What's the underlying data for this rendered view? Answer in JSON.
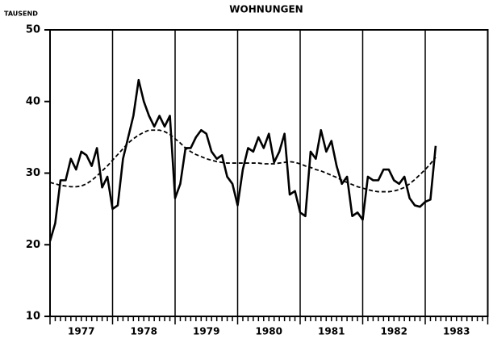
{
  "chart_data": {
    "type": "line",
    "title": "WOHNUNGEN",
    "y_label": "TAUSEND",
    "categories": [
      "1977",
      "1978",
      "1979",
      "1980",
      "1981",
      "1982",
      "1983"
    ],
    "x": [
      1977,
      1977.083,
      1977.167,
      1977.25,
      1977.333,
      1977.417,
      1977.5,
      1977.583,
      1977.667,
      1977.75,
      1977.833,
      1977.917,
      1978,
      1978.083,
      1978.167,
      1978.25,
      1978.333,
      1978.417,
      1978.5,
      1978.583,
      1978.667,
      1978.75,
      1978.833,
      1978.917,
      1979,
      1979.083,
      1979.167,
      1979.25,
      1979.333,
      1979.417,
      1979.5,
      1979.583,
      1979.667,
      1979.75,
      1979.833,
      1979.917,
      1980,
      1980.083,
      1980.167,
      1980.25,
      1980.333,
      1980.417,
      1980.5,
      1980.583,
      1980.667,
      1980.75,
      1980.833,
      1980.917,
      1981,
      1981.083,
      1981.167,
      1981.25,
      1981.333,
      1981.417,
      1981.5,
      1981.583,
      1981.667,
      1981.75,
      1981.833,
      1981.917,
      1982,
      1982.083,
      1982.167,
      1982.25,
      1982.333,
      1982.417,
      1982.5,
      1982.583,
      1982.667,
      1982.75,
      1982.833,
      1982.917,
      1983,
      1983.083,
      1983.167
    ],
    "series": [
      {
        "color": "#000000",
        "dashed": false,
        "values": [
          20.5,
          23,
          29,
          29,
          32,
          30.5,
          33,
          32.5,
          31,
          33.5,
          28,
          29.5,
          25,
          25.5,
          32,
          35,
          38,
          43,
          40,
          38,
          36.5,
          38,
          36.5,
          38,
          26.5,
          28.5,
          33.5,
          33.5,
          35,
          36,
          35.5,
          33,
          32,
          32.5,
          29.5,
          28.5,
          25.5,
          30.5,
          33.5,
          33,
          35,
          33.5,
          35.5,
          31.5,
          33,
          35.5,
          27,
          27.5,
          24.5,
          24,
          33,
          32,
          36,
          33,
          34.5,
          31,
          28.5,
          29.5,
          24,
          24.5,
          23.5,
          29.5,
          29,
          29,
          30.5,
          30.5,
          29,
          28.5,
          29.5,
          26.5,
          25.5,
          25.3,
          26,
          26.3,
          33.8
        ]
      },
      {
        "color": "#000000",
        "dashed": true,
        "values": [
          28.7,
          28.5,
          28.3,
          28.2,
          28.1,
          28.1,
          28.2,
          28.5,
          29,
          29.6,
          30.3,
          31,
          31.8,
          32.6,
          33.4,
          34.2,
          34.8,
          35.3,
          35.7,
          36,
          36,
          36,
          35.8,
          35.4,
          34.8,
          34.2,
          33.5,
          33,
          32.6,
          32.3,
          32,
          31.8,
          31.6,
          31.5,
          31.4,
          31.4,
          31.4,
          31.4,
          31.4,
          31.4,
          31.4,
          31.3,
          31.3,
          31.3,
          31.4,
          31.5,
          31.6,
          31.5,
          31.3,
          31,
          30.8,
          30.5,
          30.3,
          30,
          29.7,
          29.4,
          29,
          28.7,
          28.4,
          28.1,
          27.9,
          27.7,
          27.5,
          27.4,
          27.4,
          27.4,
          27.5,
          27.7,
          28,
          28.5,
          29.1,
          29.8,
          30.5,
          31.3,
          32.2
        ]
      }
    ],
    "xlim": [
      1977,
      1984
    ],
    "ylim": [
      10,
      50
    ],
    "yticks": [
      10,
      20,
      30,
      40,
      50
    ],
    "grid": true
  }
}
